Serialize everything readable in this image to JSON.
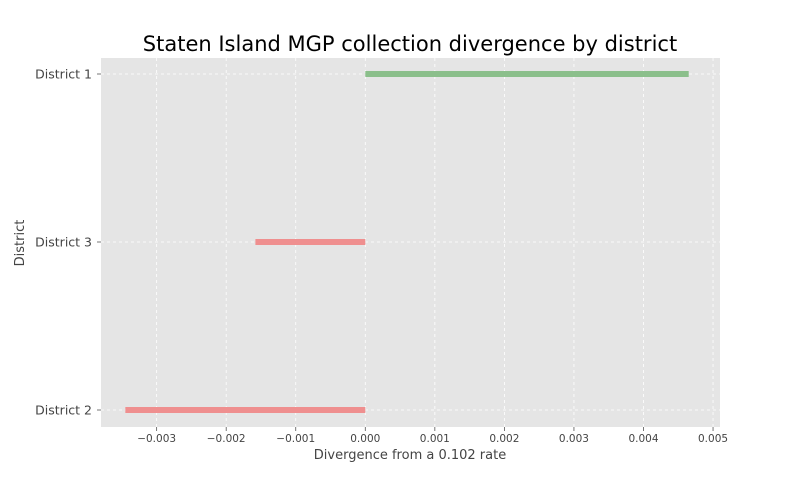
{
  "chart_data": {
    "type": "bar",
    "orientation": "horizontal",
    "title": "Staten Island MGP collection divergence by district",
    "xlabel": "Divergence from a 0.102 rate",
    "ylabel": "District",
    "categories": [
      "District 1",
      "District 3",
      "District 2"
    ],
    "values": [
      0.00465,
      -0.00158,
      -0.00345
    ],
    "xlim": [
      -0.0038,
      0.0051
    ],
    "xticks": [
      -0.003,
      -0.002,
      -0.001,
      0.0,
      0.001,
      0.002,
      0.003,
      0.004,
      0.005
    ],
    "xtick_labels": [
      "−0.003",
      "−0.002",
      "−0.001",
      "0.000",
      "0.001",
      "0.002",
      "0.003",
      "0.004",
      "0.005"
    ],
    "grid": true,
    "colors": {
      "positive": "#8bbf8b",
      "negative": "#ef8f8f",
      "plot_background": "#e5e5e5",
      "grid": "#ffffff"
    }
  }
}
